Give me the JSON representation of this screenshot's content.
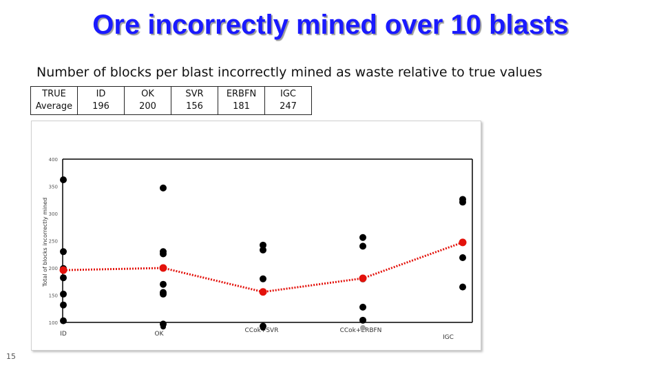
{
  "slide": {
    "title": "Ore incorrectly mined over 10 blasts",
    "subtitle": "Number of blocks per blast incorrectly mined  as waste relative to true values",
    "page_number": "15"
  },
  "table": {
    "columns": [
      {
        "header": "TRUE",
        "value": "Average"
      },
      {
        "header": "ID",
        "value": "196"
      },
      {
        "header": "OK",
        "value": "200"
      },
      {
        "header": "SVR",
        "value": "156"
      },
      {
        "header": "ERBFN",
        "value": "181"
      },
      {
        "header": "IGC",
        "value": "247"
      }
    ]
  },
  "chart_data": {
    "type": "scatter",
    "ylabel": "Total of blocks incorrectly mined",
    "ylim": [
      100,
      400
    ],
    "yticks": [
      100,
      150,
      200,
      250,
      300,
      350,
      400
    ],
    "categories": [
      "ID",
      "OK",
      "CCok+SVR",
      "CCok+ERBFN",
      "IGC"
    ],
    "grid": false,
    "series": [
      {
        "color": "#000000",
        "points": [
          [
            362,
            230,
            199,
            182,
            152,
            132,
            103
          ],
          [
            347,
            230,
            226,
            170,
            155,
            152,
            97
          ],
          [
            242,
            233,
            180,
            93
          ],
          [
            256,
            240,
            180,
            128,
            104
          ],
          [
            326,
            321,
            219,
            165
          ]
        ]
      },
      {
        "color": "#e3120b",
        "style": "dotted-line",
        "values": [
          196,
          200,
          156,
          181,
          247
        ]
      }
    ],
    "below_axis_marks": [
      {
        "category": 1,
        "value": 92,
        "color": "#000000"
      },
      {
        "category": 2,
        "value": 90,
        "color": "#000000"
      },
      {
        "category": 3,
        "value": 90,
        "color": "#a0a0a0"
      }
    ],
    "colors": {
      "axis": "#000000",
      "average": "#e3120b",
      "tick_text": "#555555"
    }
  }
}
